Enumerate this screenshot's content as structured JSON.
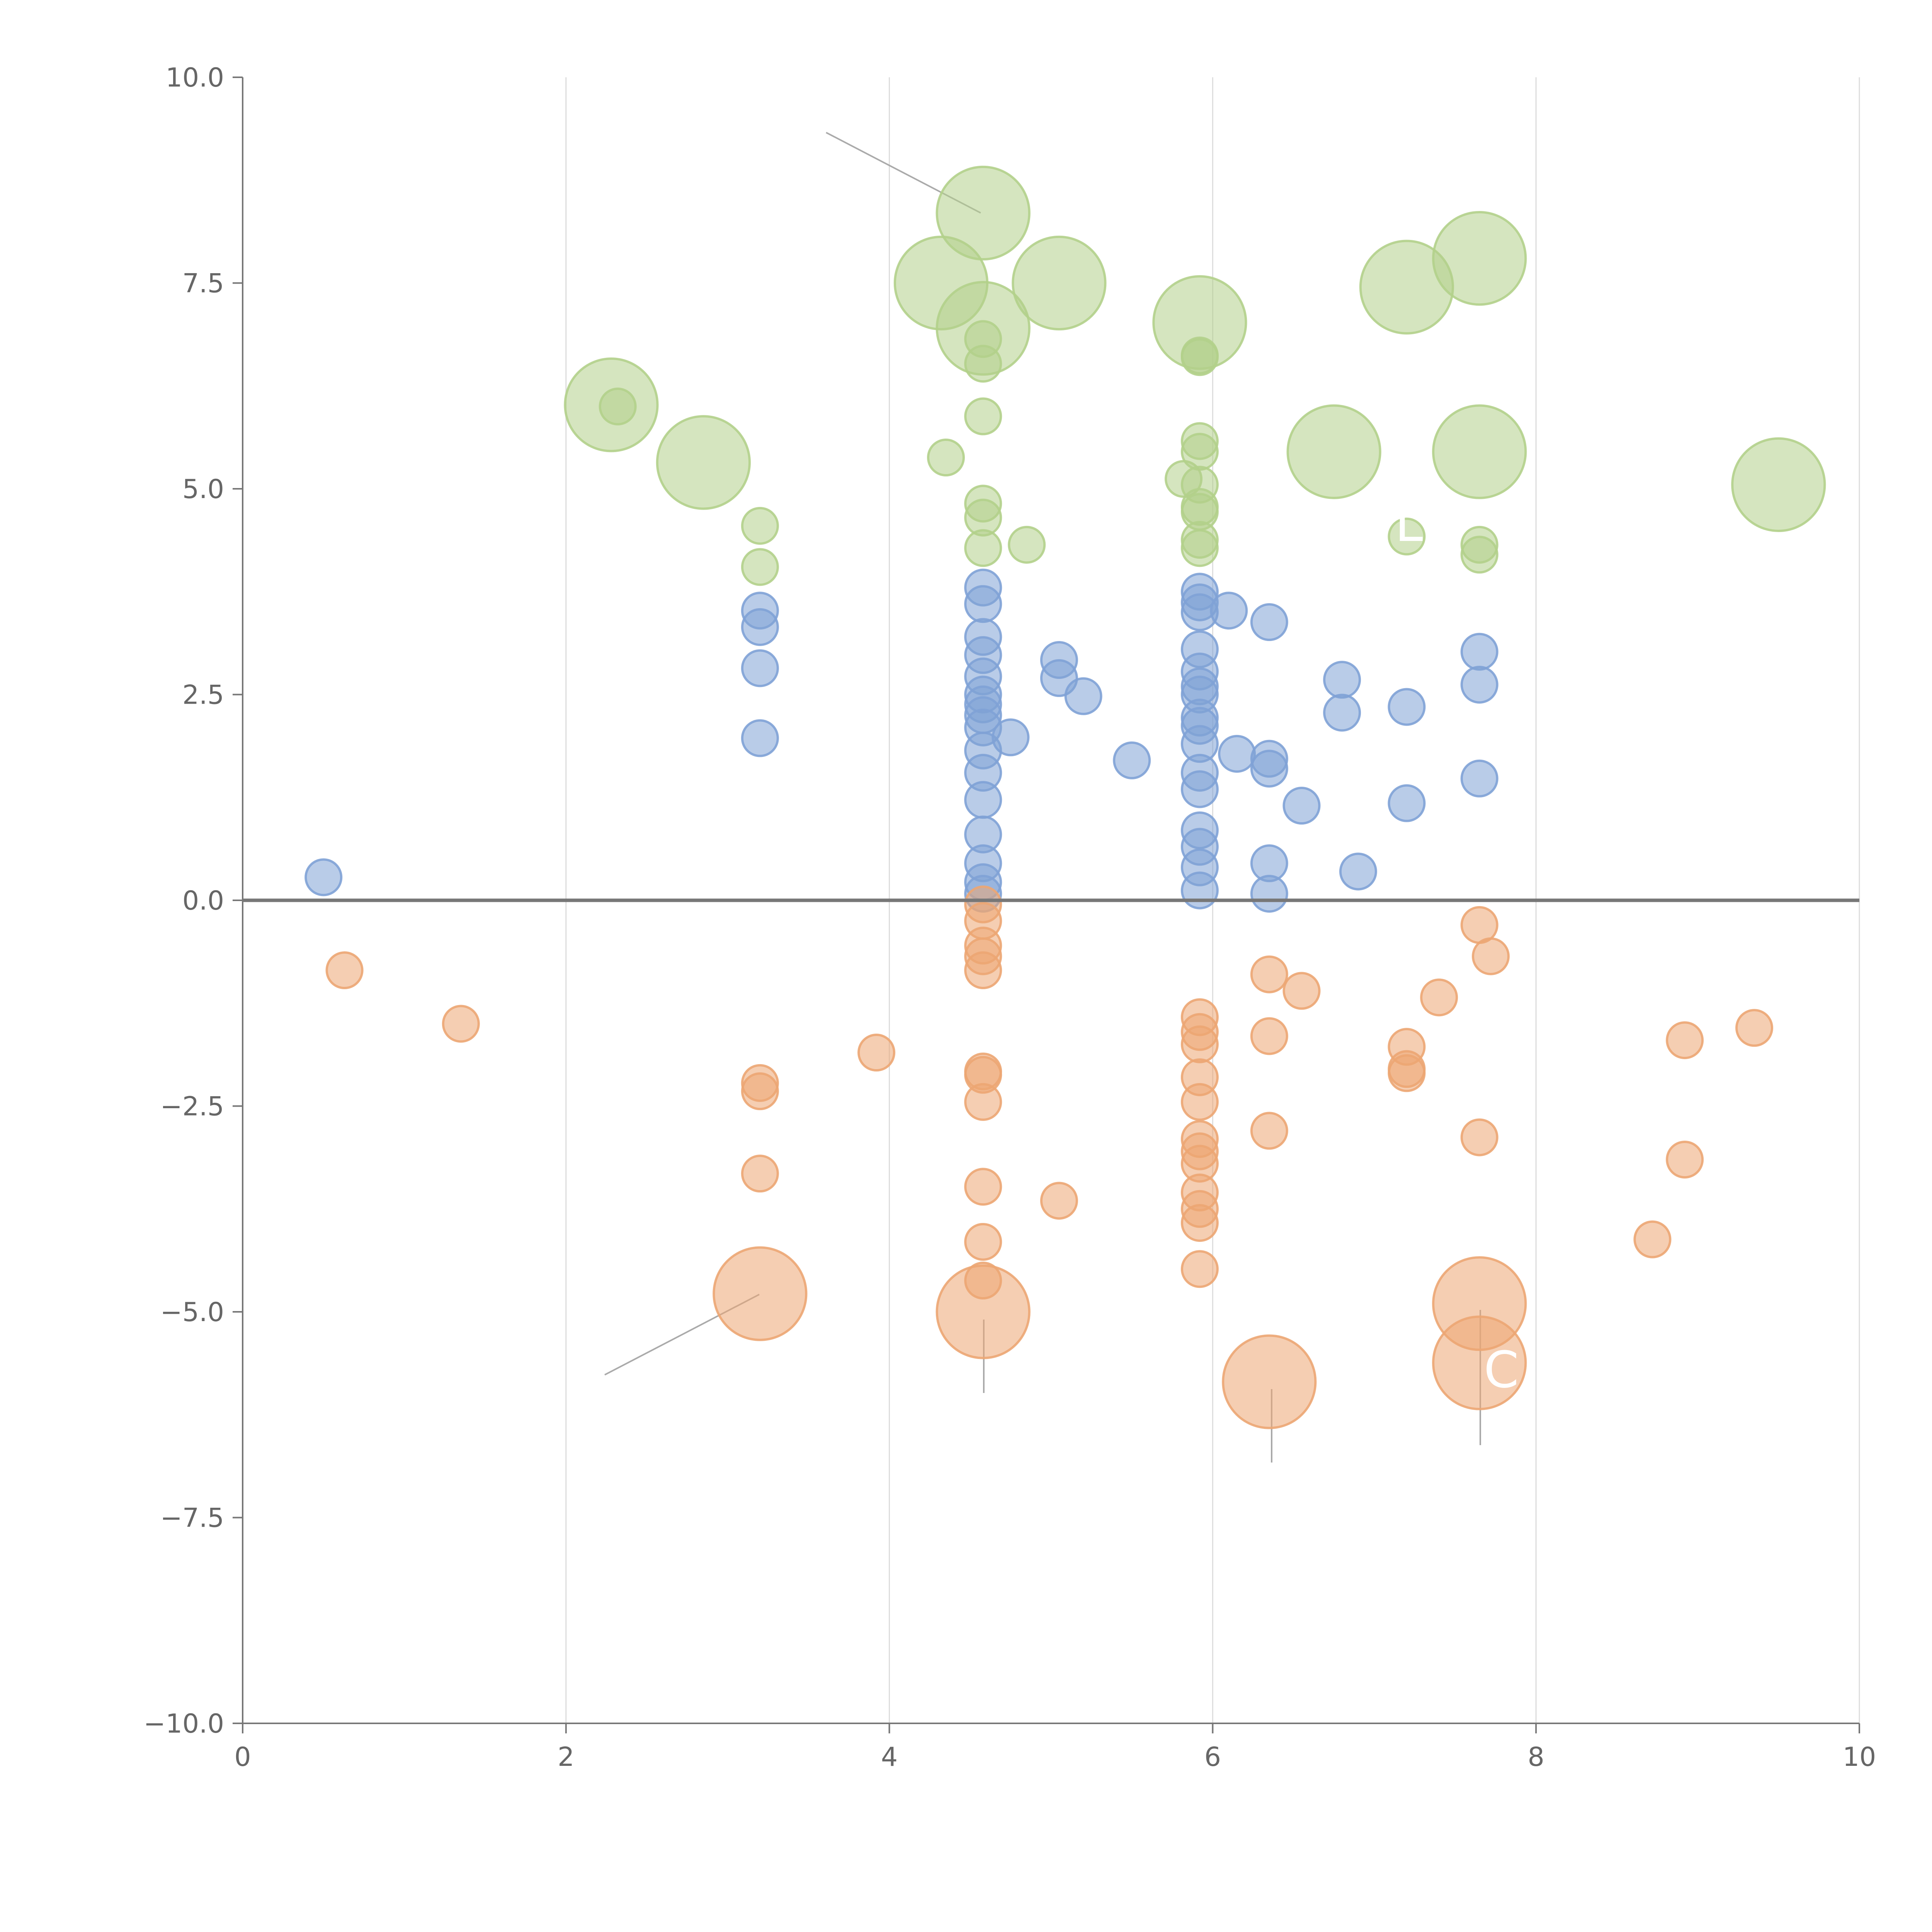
{
  "chart_data": {
    "type": "scatter",
    "title": "",
    "xlabel": "",
    "ylabel": "",
    "xlim": [
      0,
      10
    ],
    "ylim": [
      -10,
      10
    ],
    "x_ticks": [
      "0",
      "2",
      "4",
      "6",
      "8",
      "10"
    ],
    "y_ticks": [
      "10.0",
      "7.5",
      "5.0",
      "2.5",
      "0.0",
      "−2.5",
      "−5.0",
      "−7.5",
      "−10.0"
    ],
    "grid": "vertical only",
    "legend": "none",
    "colors": {
      "blue": "#7fa2d6",
      "orange": "#eca673",
      "green": "#b3d08b",
      "axis": "#777777"
    },
    "series": [
      {
        "color": "#7fa2d6",
        "points": [
          [
            0.5,
            0.28,
            1
          ],
          [
            3.2,
            3.52,
            1
          ],
          [
            3.2,
            3.32,
            1
          ],
          [
            3.2,
            2.82,
            1
          ],
          [
            3.2,
            1.97,
            1
          ],
          [
            4.58,
            3.8,
            1
          ],
          [
            4.58,
            3.6,
            1
          ],
          [
            4.58,
            3.2,
            1
          ],
          [
            4.58,
            2.98,
            1
          ],
          [
            4.58,
            2.72,
            1
          ],
          [
            4.58,
            2.5,
            1
          ],
          [
            4.58,
            2.38,
            1
          ],
          [
            4.58,
            2.25,
            1
          ],
          [
            4.58,
            2.1,
            1
          ],
          [
            4.58,
            1.82,
            1
          ],
          [
            4.58,
            1.55,
            1
          ],
          [
            4.58,
            1.22,
            1
          ],
          [
            4.58,
            0.8,
            1
          ],
          [
            4.58,
            0.45,
            1
          ],
          [
            4.58,
            0.22,
            1
          ],
          [
            4.58,
            0.08,
            1
          ],
          [
            4.75,
            1.98,
            1
          ],
          [
            5.05,
            2.92,
            1
          ],
          [
            5.05,
            2.7,
            1
          ],
          [
            5.2,
            2.48,
            1
          ],
          [
            5.5,
            1.7,
            1
          ],
          [
            5.92,
            3.75,
            1
          ],
          [
            5.92,
            3.62,
            1
          ],
          [
            5.92,
            3.5,
            1
          ],
          [
            5.92,
            3.05,
            1
          ],
          [
            5.92,
            2.78,
            1
          ],
          [
            5.92,
            2.6,
            1
          ],
          [
            5.92,
            2.5,
            1
          ],
          [
            5.92,
            2.22,
            1
          ],
          [
            5.92,
            2.12,
            1
          ],
          [
            5.92,
            1.9,
            1
          ],
          [
            5.92,
            1.55,
            1
          ],
          [
            5.92,
            1.35,
            1
          ],
          [
            5.92,
            0.85,
            1
          ],
          [
            5.92,
            0.65,
            1
          ],
          [
            5.92,
            0.4,
            1
          ],
          [
            5.92,
            0.12,
            1
          ],
          [
            6.1,
            3.52,
            1
          ],
          [
            6.15,
            1.78,
            1
          ],
          [
            6.35,
            3.38,
            1
          ],
          [
            6.35,
            1.72,
            1
          ],
          [
            6.35,
            1.6,
            1
          ],
          [
            6.35,
            0.45,
            1
          ],
          [
            6.35,
            0.08,
            1
          ],
          [
            6.55,
            1.15,
            1
          ],
          [
            6.8,
            2.68,
            1
          ],
          [
            6.8,
            2.28,
            1
          ],
          [
            6.9,
            0.35,
            1
          ],
          [
            7.2,
            2.35,
            1
          ],
          [
            7.2,
            1.18,
            1
          ],
          [
            7.65,
            3.02,
            1
          ],
          [
            7.65,
            2.62,
            1
          ],
          [
            7.65,
            1.48,
            1
          ]
        ]
      },
      {
        "color": "#eca673",
        "points": [
          [
            0.63,
            -0.85,
            1
          ],
          [
            1.35,
            -1.5,
            1
          ],
          [
            3.2,
            -2.22,
            1
          ],
          [
            3.2,
            -2.32,
            1
          ],
          [
            3.2,
            -3.32,
            1
          ],
          [
            3.2,
            -4.78,
            2.6
          ],
          [
            3.92,
            -1.85,
            1
          ],
          [
            4.58,
            -0.05,
            1
          ],
          [
            4.58,
            -0.25,
            1
          ],
          [
            4.58,
            -0.55,
            1
          ],
          [
            4.58,
            -0.68,
            1
          ],
          [
            4.58,
            -0.85,
            1
          ],
          [
            4.58,
            -2.08,
            1
          ],
          [
            4.58,
            -2.12,
            1
          ],
          [
            4.58,
            -2.45,
            1
          ],
          [
            4.58,
            -3.48,
            1
          ],
          [
            4.58,
            -4.15,
            1
          ],
          [
            4.58,
            -4.62,
            1
          ],
          [
            4.58,
            -5.0,
            2.6
          ],
          [
            5.05,
            -3.65,
            1
          ],
          [
            5.92,
            -1.42,
            1
          ],
          [
            5.92,
            -1.6,
            1
          ],
          [
            5.92,
            -1.75,
            1
          ],
          [
            5.92,
            -2.15,
            1
          ],
          [
            5.92,
            -2.45,
            1
          ],
          [
            5.92,
            -2.9,
            1
          ],
          [
            5.92,
            -3.05,
            1
          ],
          [
            5.92,
            -3.2,
            1
          ],
          [
            5.92,
            -3.55,
            1
          ],
          [
            5.92,
            -3.75,
            1
          ],
          [
            5.92,
            -3.92,
            1
          ],
          [
            5.92,
            -4.48,
            1
          ],
          [
            6.35,
            -0.9,
            1
          ],
          [
            6.35,
            -1.65,
            1
          ],
          [
            6.35,
            -2.8,
            1
          ],
          [
            6.35,
            -5.85,
            2.6
          ],
          [
            6.55,
            -1.1,
            1
          ],
          [
            7.2,
            -1.78,
            1
          ],
          [
            7.2,
            -2.05,
            1
          ],
          [
            7.2,
            -2.1,
            1
          ],
          [
            7.4,
            -1.18,
            1
          ],
          [
            7.65,
            -0.3,
            1
          ],
          [
            7.65,
            -2.88,
            1
          ],
          [
            7.65,
            -4.9,
            2.6
          ],
          [
            7.65,
            -5.62,
            2.6
          ],
          [
            7.72,
            -0.68,
            1
          ],
          [
            8.72,
            -4.12,
            1
          ],
          [
            8.92,
            -1.7,
            1
          ],
          [
            8.92,
            -3.15,
            1
          ],
          [
            9.35,
            -1.55,
            1
          ]
        ]
      },
      {
        "color": "#b3d08b",
        "points": [
          [
            2.28,
            6.02,
            2.6
          ],
          [
            2.32,
            6.0,
            1
          ],
          [
            2.85,
            5.32,
            2.6
          ],
          [
            3.2,
            4.55,
            1
          ],
          [
            3.2,
            4.05,
            1
          ],
          [
            4.35,
            5.38,
            1
          ],
          [
            4.32,
            7.5,
            2.6
          ],
          [
            4.58,
            8.35,
            2.6
          ],
          [
            4.58,
            6.95,
            2.6
          ],
          [
            4.58,
            6.82,
            1
          ],
          [
            4.58,
            6.52,
            1
          ],
          [
            4.58,
            5.88,
            1
          ],
          [
            4.58,
            4.82,
            1
          ],
          [
            4.58,
            4.65,
            1
          ],
          [
            4.58,
            4.28,
            1
          ],
          [
            4.85,
            4.32,
            1
          ],
          [
            5.05,
            7.5,
            2.6
          ],
          [
            5.82,
            5.12,
            1
          ],
          [
            5.92,
            7.02,
            2.6
          ],
          [
            5.92,
            6.62,
            1
          ],
          [
            5.92,
            6.6,
            1
          ],
          [
            5.92,
            5.58,
            1
          ],
          [
            5.92,
            5.45,
            1
          ],
          [
            5.92,
            5.05,
            1
          ],
          [
            5.92,
            4.78,
            1
          ],
          [
            5.92,
            4.72,
            1
          ],
          [
            5.92,
            4.38,
            1
          ],
          [
            5.92,
            4.28,
            1
          ],
          [
            6.75,
            5.45,
            2.6
          ],
          [
            7.2,
            7.45,
            2.6
          ],
          [
            7.2,
            4.42,
            1
          ],
          [
            7.65,
            7.8,
            2.6
          ],
          [
            7.65,
            5.45,
            2.6
          ],
          [
            7.65,
            4.32,
            1
          ],
          [
            7.65,
            4.2,
            1
          ],
          [
            9.5,
            5.05,
            2.6
          ]
        ]
      }
    ]
  },
  "annotations": {
    "visible_fragments": [
      "L",
      "C"
    ]
  }
}
